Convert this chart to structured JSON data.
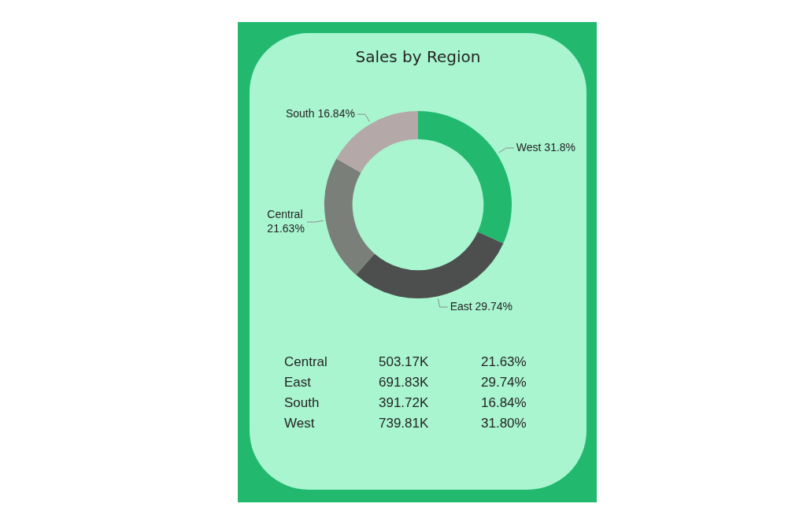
{
  "chart_data": [
    {
      "type": "donut",
      "title": "Sales by Region",
      "categories": [
        "West",
        "East",
        "Central",
        "South"
      ],
      "values": [
        31.8,
        29.74,
        21.63,
        16.84
      ],
      "value_labels": [
        "31.8%",
        "29.74%",
        "21.63%",
        "16.84%"
      ],
      "colors": [
        "#22b96f",
        "#4d4f4e",
        "#7b7f79",
        "#b5a8a8"
      ],
      "legend": false
    },
    {
      "type": "other",
      "annotations": [
        "Central",
        "503.17K",
        "21.63%",
        "East",
        "691.83K",
        "29.74%",
        "South",
        "391.72K",
        "16.84%",
        "West",
        "739.81K",
        "31.80%"
      ]
    }
  ]
}
